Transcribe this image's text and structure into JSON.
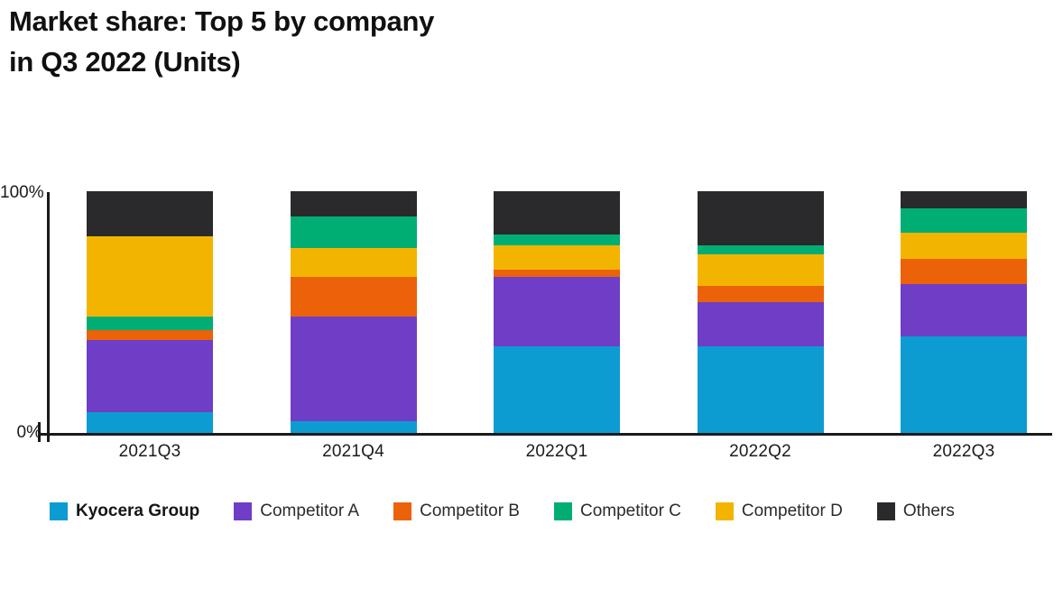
{
  "title": {
    "line1": "Market share: Top 5 by company",
    "line2": "in Q3 2022 (Units)"
  },
  "y_axis": {
    "max_label": "100%",
    "min_label": "0%"
  },
  "colors": {
    "kyocera_blue": "#0D9CD2",
    "competitor_a_purple": "#6F3EC6",
    "competitor_b_orange": "#EB6209",
    "competitor_c_green": "#00AE74",
    "competitor_d_yellow": "#F3B400",
    "others_black": "#2A2A2C",
    "axis": "#1A1A1A"
  },
  "legend": {
    "items": [
      {
        "name": "Kyocera Group",
        "color": "#0D9CD2",
        "bold": true
      },
      {
        "name": "Competitor A",
        "color": "#6F3EC6",
        "bold": false
      },
      {
        "name": "Competitor B",
        "color": "#EB6209",
        "bold": false
      },
      {
        "name": "Competitor C",
        "color": "#00AE74",
        "bold": false
      },
      {
        "name": "Competitor D",
        "color": "#F3B400",
        "bold": false
      },
      {
        "name": "Others",
        "color": "#2A2A2C",
        "bold": false
      }
    ]
  },
  "chart_data": {
    "type": "bar",
    "stacked": true,
    "unit": "percent",
    "ylim": [
      0,
      100
    ],
    "grid": false,
    "legend_position": "bottom",
    "categories": [
      "2021Q3",
      "2021Q4",
      "2022Q1",
      "2022Q2",
      "2022Q3"
    ],
    "series": [
      {
        "name": "Kyocera Group",
        "color": "#0D9CD2",
        "values": [
          8.5,
          5,
          36,
          36,
          40
        ]
      },
      {
        "name": "Competitor A",
        "color": "#6F3EC6",
        "values": [
          30,
          43,
          28.5,
          18,
          21.5
        ]
      },
      {
        "name": "Competitor B",
        "color": "#EB6209",
        "values": [
          4,
          16.5,
          3,
          7,
          10.5
        ]
      },
      {
        "name": "Competitor C",
        "color": "#00AE74",
        "values": [
          5.5,
          13,
          4.5,
          3.5,
          10
        ]
      },
      {
        "name": "Competitor D",
        "color": "#F3B400",
        "values": [
          33.5,
          12,
          10,
          13,
          11
        ]
      },
      {
        "name": "Others",
        "color": "#2A2A2C",
        "values": [
          18.5,
          10.5,
          18,
          22.5,
          7
        ]
      }
    ],
    "stack_order_bottom_to_top": {
      "2021Q3": [
        "Kyocera Group",
        "Competitor A",
        "Competitor B",
        "Competitor C",
        "Competitor D",
        "Others"
      ],
      "2021Q4": [
        "Kyocera Group",
        "Competitor A",
        "Competitor B",
        "Competitor D",
        "Competitor C",
        "Others"
      ],
      "2022Q1": [
        "Kyocera Group",
        "Competitor A",
        "Competitor B",
        "Competitor D",
        "Competitor C",
        "Others"
      ],
      "2022Q2": [
        "Kyocera Group",
        "Competitor A",
        "Competitor B",
        "Competitor D",
        "Competitor C",
        "Others"
      ],
      "2022Q3": [
        "Kyocera Group",
        "Competitor A",
        "Competitor B",
        "Competitor D",
        "Competitor C",
        "Others"
      ]
    }
  }
}
